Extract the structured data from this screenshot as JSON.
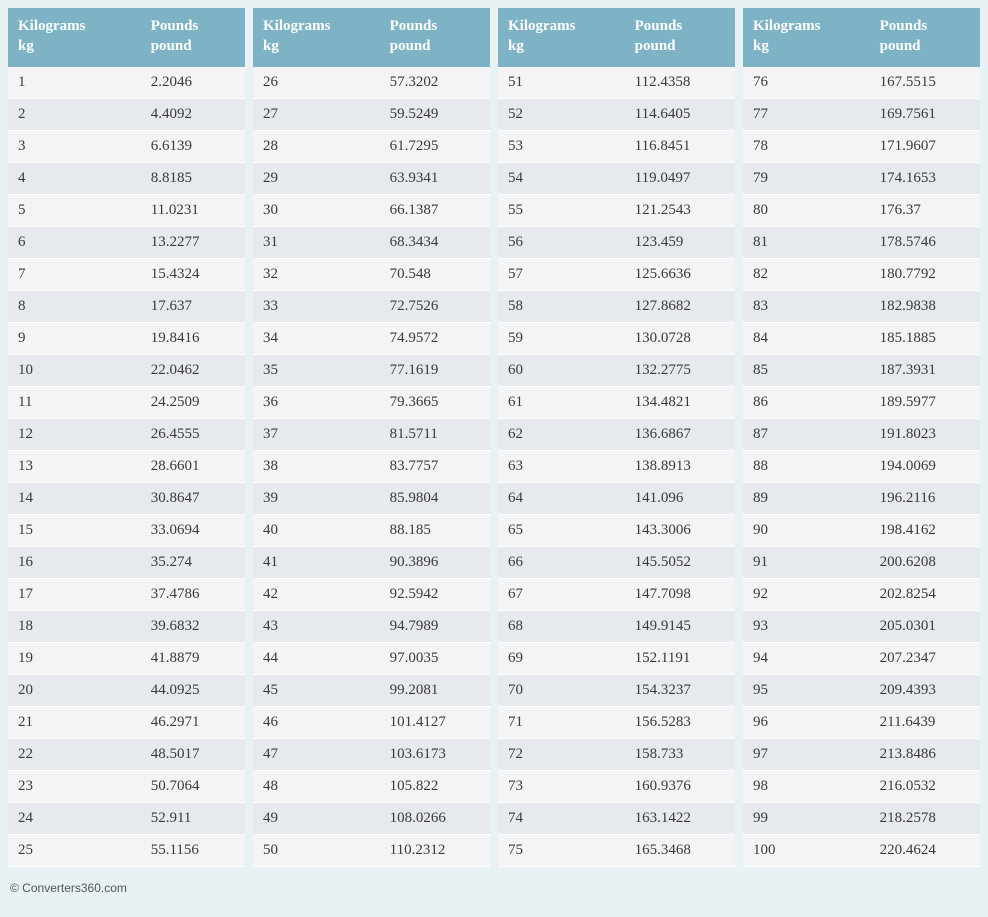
{
  "columns": {
    "kg": {
      "label": "Kilograms",
      "unit": "kg"
    },
    "pound": {
      "label": "Pounds",
      "unit": "pound"
    }
  },
  "tables": [
    {
      "rows": [
        {
          "kg": "1",
          "pound": "2.2046"
        },
        {
          "kg": "2",
          "pound": "4.4092"
        },
        {
          "kg": "3",
          "pound": "6.6139"
        },
        {
          "kg": "4",
          "pound": "8.8185"
        },
        {
          "kg": "5",
          "pound": "11.0231"
        },
        {
          "kg": "6",
          "pound": "13.2277"
        },
        {
          "kg": "7",
          "pound": "15.4324"
        },
        {
          "kg": "8",
          "pound": "17.637"
        },
        {
          "kg": "9",
          "pound": "19.8416"
        },
        {
          "kg": "10",
          "pound": "22.0462"
        },
        {
          "kg": "11",
          "pound": "24.2509"
        },
        {
          "kg": "12",
          "pound": "26.4555"
        },
        {
          "kg": "13",
          "pound": "28.6601"
        },
        {
          "kg": "14",
          "pound": "30.8647"
        },
        {
          "kg": "15",
          "pound": "33.0694"
        },
        {
          "kg": "16",
          "pound": "35.274"
        },
        {
          "kg": "17",
          "pound": "37.4786"
        },
        {
          "kg": "18",
          "pound": "39.6832"
        },
        {
          "kg": "19",
          "pound": "41.8879"
        },
        {
          "kg": "20",
          "pound": "44.0925"
        },
        {
          "kg": "21",
          "pound": "46.2971"
        },
        {
          "kg": "22",
          "pound": "48.5017"
        },
        {
          "kg": "23",
          "pound": "50.7064"
        },
        {
          "kg": "24",
          "pound": "52.911"
        },
        {
          "kg": "25",
          "pound": "55.1156"
        }
      ]
    },
    {
      "rows": [
        {
          "kg": "26",
          "pound": "57.3202"
        },
        {
          "kg": "27",
          "pound": "59.5249"
        },
        {
          "kg": "28",
          "pound": "61.7295"
        },
        {
          "kg": "29",
          "pound": "63.9341"
        },
        {
          "kg": "30",
          "pound": "66.1387"
        },
        {
          "kg": "31",
          "pound": "68.3434"
        },
        {
          "kg": "32",
          "pound": "70.548"
        },
        {
          "kg": "33",
          "pound": "72.7526"
        },
        {
          "kg": "34",
          "pound": "74.9572"
        },
        {
          "kg": "35",
          "pound": "77.1619"
        },
        {
          "kg": "36",
          "pound": "79.3665"
        },
        {
          "kg": "37",
          "pound": "81.5711"
        },
        {
          "kg": "38",
          "pound": "83.7757"
        },
        {
          "kg": "39",
          "pound": "85.9804"
        },
        {
          "kg": "40",
          "pound": "88.185"
        },
        {
          "kg": "41",
          "pound": "90.3896"
        },
        {
          "kg": "42",
          "pound": "92.5942"
        },
        {
          "kg": "43",
          "pound": "94.7989"
        },
        {
          "kg": "44",
          "pound": "97.0035"
        },
        {
          "kg": "45",
          "pound": "99.2081"
        },
        {
          "kg": "46",
          "pound": "101.4127"
        },
        {
          "kg": "47",
          "pound": "103.6173"
        },
        {
          "kg": "48",
          "pound": "105.822"
        },
        {
          "kg": "49",
          "pound": "108.0266"
        },
        {
          "kg": "50",
          "pound": "110.2312"
        }
      ]
    },
    {
      "rows": [
        {
          "kg": "51",
          "pound": "112.4358"
        },
        {
          "kg": "52",
          "pound": "114.6405"
        },
        {
          "kg": "53",
          "pound": "116.8451"
        },
        {
          "kg": "54",
          "pound": "119.0497"
        },
        {
          "kg": "55",
          "pound": "121.2543"
        },
        {
          "kg": "56",
          "pound": "123.459"
        },
        {
          "kg": "57",
          "pound": "125.6636"
        },
        {
          "kg": "58",
          "pound": "127.8682"
        },
        {
          "kg": "59",
          "pound": "130.0728"
        },
        {
          "kg": "60",
          "pound": "132.2775"
        },
        {
          "kg": "61",
          "pound": "134.4821"
        },
        {
          "kg": "62",
          "pound": "136.6867"
        },
        {
          "kg": "63",
          "pound": "138.8913"
        },
        {
          "kg": "64",
          "pound": "141.096"
        },
        {
          "kg": "65",
          "pound": "143.3006"
        },
        {
          "kg": "66",
          "pound": "145.5052"
        },
        {
          "kg": "67",
          "pound": "147.7098"
        },
        {
          "kg": "68",
          "pound": "149.9145"
        },
        {
          "kg": "69",
          "pound": "152.1191"
        },
        {
          "kg": "70",
          "pound": "154.3237"
        },
        {
          "kg": "71",
          "pound": "156.5283"
        },
        {
          "kg": "72",
          "pound": "158.733"
        },
        {
          "kg": "73",
          "pound": "160.9376"
        },
        {
          "kg": "74",
          "pound": "163.1422"
        },
        {
          "kg": "75",
          "pound": "165.3468"
        }
      ]
    },
    {
      "rows": [
        {
          "kg": "76",
          "pound": "167.5515"
        },
        {
          "kg": "77",
          "pound": "169.7561"
        },
        {
          "kg": "78",
          "pound": "171.9607"
        },
        {
          "kg": "79",
          "pound": "174.1653"
        },
        {
          "kg": "80",
          "pound": "176.37"
        },
        {
          "kg": "81",
          "pound": "178.5746"
        },
        {
          "kg": "82",
          "pound": "180.7792"
        },
        {
          "kg": "83",
          "pound": "182.9838"
        },
        {
          "kg": "84",
          "pound": "185.1885"
        },
        {
          "kg": "85",
          "pound": "187.3931"
        },
        {
          "kg": "86",
          "pound": "189.5977"
        },
        {
          "kg": "87",
          "pound": "191.8023"
        },
        {
          "kg": "88",
          "pound": "194.0069"
        },
        {
          "kg": "89",
          "pound": "196.2116"
        },
        {
          "kg": "90",
          "pound": "198.4162"
        },
        {
          "kg": "91",
          "pound": "200.6208"
        },
        {
          "kg": "92",
          "pound": "202.8254"
        },
        {
          "kg": "93",
          "pound": "205.0301"
        },
        {
          "kg": "94",
          "pound": "207.2347"
        },
        {
          "kg": "95",
          "pound": "209.4393"
        },
        {
          "kg": "96",
          "pound": "211.6439"
        },
        {
          "kg": "97",
          "pound": "213.8486"
        },
        {
          "kg": "98",
          "pound": "216.0532"
        },
        {
          "kg": "99",
          "pound": "218.2578"
        },
        {
          "kg": "100",
          "pound": "220.4624"
        }
      ]
    }
  ],
  "footer": "© Converters360.com",
  "styling": {
    "page_bg": "#e8f2f4",
    "header_bg": "#7db3c4",
    "header_text": "#ffffff",
    "row_odd_bg": "#f4f4f7",
    "row_even_bg": "#e6e9ee",
    "text_color": "#3a3a3a",
    "font_family": "Georgia serif",
    "header_fontsize_pt": 11,
    "cell_fontsize_pt": 11,
    "table_count": 4,
    "rows_per_table": 25,
    "col_widths_ratio": [
      0.5,
      0.5
    ]
  }
}
